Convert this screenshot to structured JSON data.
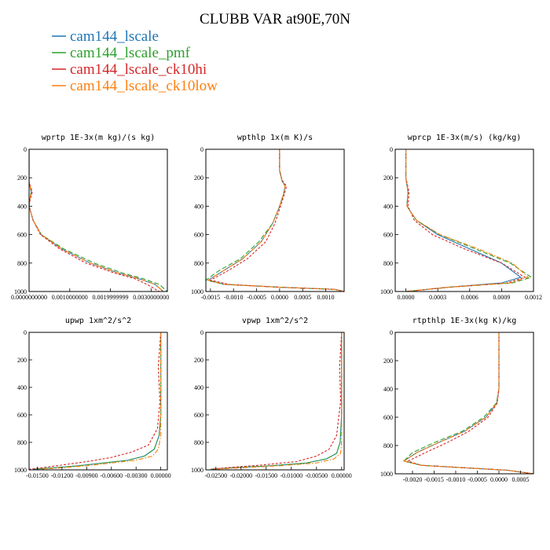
{
  "title": "CLUBB VAR at90E,70N",
  "legend": [
    {
      "label": "cam144_lscale",
      "color": "#1f77b4",
      "style": "solid"
    },
    {
      "label": "cam144_lscale_pmf",
      "color": "#2ca02c",
      "style": "longdash"
    },
    {
      "label": "cam144_lscale_ck10hi",
      "color": "#d62728",
      "style": "dash"
    },
    {
      "label": "cam144_lscale_ck10low",
      "color": "#ff7f0e",
      "style": "dashdot"
    }
  ],
  "chart_data": [
    {
      "type": "line",
      "title": "wprtp  1E-3x(m kg)/(s kg)",
      "xlim": [
        0,
        0.0034
      ],
      "ylim": [
        1000,
        0
      ],
      "xticks": [
        0,
        0.001,
        0.002,
        0.003
      ],
      "xtick_labels": [
        "0.0000000000",
        "0.0010000000",
        "0.0019999999",
        "0.0030000000"
      ],
      "yticks": [
        0,
        200,
        400,
        600,
        800,
        1000
      ],
      "ytick_labels": [
        "0",
        "200",
        "400",
        "600",
        "800",
        "1000"
      ],
      "series": [
        {
          "name": "cam144_lscale",
          "x": [
            0,
            0,
            0,
            5e-05,
            2e-05,
            0,
            0.0001,
            0.0003,
            0.0008,
            0.0015,
            0.0022,
            0.0027,
            0.0031,
            0.0033
          ],
          "y": [
            0,
            200,
            230,
            300,
            350,
            400,
            500,
            600,
            700,
            800,
            870,
            910,
            950,
            1000
          ]
        },
        {
          "name": "cam144_lscale_pmf",
          "x": [
            0,
            0,
            0,
            6e-05,
            2e-05,
            0,
            0.0001,
            0.0003,
            0.00085,
            0.0016,
            0.0023,
            0.0028,
            0.0032,
            0.0034
          ],
          "y": [
            0,
            200,
            230,
            300,
            350,
            400,
            500,
            600,
            700,
            800,
            870,
            910,
            950,
            1000
          ]
        },
        {
          "name": "cam144_lscale_ck10hi",
          "x": [
            0,
            0,
            0,
            8e-05,
            3e-05,
            0,
            0.0001,
            0.00028,
            0.00075,
            0.0014,
            0.0021,
            0.0026,
            0.0029,
            0.0032
          ],
          "y": [
            0,
            200,
            230,
            300,
            350,
            400,
            500,
            600,
            700,
            800,
            870,
            910,
            950,
            1000
          ]
        },
        {
          "name": "cam144_lscale_ck10low",
          "x": [
            0,
            0,
            0,
            5e-05,
            2e-05,
            0,
            0.0001,
            0.0003,
            0.0008,
            0.0015,
            0.0022,
            0.0027,
            0.0031,
            0.0033
          ],
          "y": [
            0,
            200,
            230,
            300,
            350,
            400,
            500,
            600,
            700,
            800,
            870,
            910,
            950,
            1000
          ]
        }
      ]
    },
    {
      "type": "line",
      "title": "wpthlp  1x(m K)/s",
      "xlim": [
        -0.0016,
        0.0014
      ],
      "ylim": [
        1000,
        0
      ],
      "xticks": [
        -0.0015,
        -0.001,
        -0.0005,
        0,
        0.0005,
        0.001
      ],
      "xtick_labels": [
        "-0.0015",
        "-0.0010",
        "-0.0005",
        "0.0000",
        "0.0005",
        "0.0010"
      ],
      "yticks": [
        0,
        200,
        400,
        600,
        800,
        1000
      ],
      "ytick_labels": [
        "0",
        "200",
        "400",
        "600",
        "800",
        "1000"
      ],
      "series": [
        {
          "name": "cam144_lscale",
          "x": [
            0,
            0,
            5e-05,
            0.00012,
            8e-05,
            0,
            -0.00015,
            -0.0004,
            -0.0008,
            -0.0012,
            -0.00155,
            -0.0012,
            0,
            0.0012,
            0.0014
          ],
          "y": [
            0,
            150,
            220,
            260,
            320,
            400,
            520,
            650,
            770,
            850,
            920,
            950,
            970,
            985,
            1000
          ]
        },
        {
          "name": "cam144_lscale_pmf",
          "x": [
            0,
            0,
            5e-05,
            0.00012,
            8e-05,
            0,
            -0.00015,
            -0.00045,
            -0.00085,
            -0.0013,
            -0.0016,
            -0.0012,
            0,
            0.0012,
            0.0014
          ],
          "y": [
            0,
            150,
            220,
            260,
            320,
            400,
            520,
            650,
            770,
            850,
            920,
            950,
            970,
            985,
            1000
          ]
        },
        {
          "name": "cam144_lscale_ck10hi",
          "x": [
            0,
            0,
            6e-05,
            0.00015,
            0.0001,
            2e-05,
            -0.0001,
            -0.0003,
            -0.0007,
            -0.0011,
            -0.0015,
            -0.0011,
            0,
            0.0012,
            0.0014
          ],
          "y": [
            0,
            150,
            220,
            260,
            320,
            400,
            520,
            650,
            770,
            850,
            920,
            950,
            970,
            985,
            1000
          ]
        },
        {
          "name": "cam144_lscale_ck10low",
          "x": [
            0,
            0,
            5e-05,
            0.00012,
            8e-05,
            0,
            -0.00015,
            -0.0004,
            -0.0008,
            -0.0012,
            -0.00155,
            -0.0012,
            0,
            0.0012,
            0.0014
          ],
          "y": [
            0,
            150,
            220,
            260,
            320,
            400,
            520,
            650,
            770,
            850,
            920,
            950,
            970,
            985,
            1000
          ]
        }
      ]
    },
    {
      "type": "line",
      "title": "wprcp  1E-3x(m/s) (kg/kg)",
      "xlim": [
        -0.0001,
        0.0012
      ],
      "ylim": [
        1000,
        0
      ],
      "xticks": [
        0,
        0.0003,
        0.0006,
        0.0009,
        0.0012
      ],
      "xtick_labels": [
        "0.0000",
        "0.0003",
        "0.0006",
        "0.0009",
        "0.0012"
      ],
      "yticks": [
        0,
        200,
        400,
        600,
        800,
        1000
      ],
      "ytick_labels": [
        "0",
        "200",
        "400",
        "600",
        "800",
        "1000"
      ],
      "series": [
        {
          "name": "cam144_lscale",
          "x": [
            0,
            0,
            2e-05,
            1e-05,
            0.0001,
            0.0003,
            0.0006,
            0.0009,
            0.00108,
            0.0009,
            0.0004,
            0
          ],
          "y": [
            0,
            200,
            300,
            400,
            500,
            600,
            700,
            800,
            900,
            940,
            970,
            1000
          ]
        },
        {
          "name": "cam144_lscale_pmf",
          "x": [
            0,
            0,
            2e-05,
            1e-05,
            0.0001,
            0.00032,
            0.00065,
            0.00098,
            0.00118,
            0.001,
            0.0004,
            0
          ],
          "y": [
            0,
            200,
            300,
            400,
            500,
            600,
            700,
            800,
            900,
            940,
            970,
            1000
          ]
        },
        {
          "name": "cam144_lscale_ck10hi",
          "x": [
            0,
            0,
            3e-05,
            2e-05,
            8e-05,
            0.00025,
            0.00055,
            0.0009,
            0.00112,
            0.00095,
            0.0004,
            0
          ],
          "y": [
            0,
            200,
            300,
            400,
            500,
            600,
            700,
            800,
            900,
            940,
            970,
            1000
          ]
        },
        {
          "name": "cam144_lscale_ck10low",
          "x": [
            0,
            0,
            2e-05,
            1e-05,
            0.0001,
            0.00032,
            0.00068,
            0.001,
            0.00115,
            0.00098,
            0.0004,
            0
          ],
          "y": [
            0,
            200,
            300,
            400,
            500,
            600,
            700,
            800,
            900,
            940,
            970,
            1000
          ]
        }
      ]
    },
    {
      "type": "line",
      "title": "upwp  1xm^2/s^2",
      "xlim": [
        -0.016,
        0.0008
      ],
      "ylim": [
        1000,
        0
      ],
      "xticks": [
        -0.015,
        -0.012,
        -0.009,
        -0.006,
        -0.003,
        0
      ],
      "xtick_labels": [
        "-0.01500",
        "-0.01200",
        "-0.00900",
        "-0.00600",
        "-0.00300",
        "0.00000"
      ],
      "yticks": [
        0,
        200,
        400,
        600,
        800,
        1000
      ],
      "ytick_labels": [
        "0",
        "200",
        "400",
        "600",
        "800",
        "1000"
      ],
      "series": [
        {
          "name": "cam144_lscale",
          "x": [
            0,
            0,
            0,
            -0.0002,
            -0.0008,
            -0.002,
            -0.004,
            -0.007,
            -0.01,
            -0.013,
            -0.0155
          ],
          "y": [
            0,
            300,
            600,
            750,
            850,
            900,
            930,
            950,
            970,
            985,
            995
          ]
        },
        {
          "name": "cam144_lscale_pmf",
          "x": [
            0,
            0,
            0,
            -0.0002,
            -0.0008,
            -0.002,
            -0.004,
            -0.007,
            -0.01,
            -0.013,
            -0.0155
          ],
          "y": [
            0,
            300,
            600,
            750,
            850,
            900,
            930,
            950,
            970,
            985,
            995
          ]
        },
        {
          "name": "cam144_lscale_ck10hi",
          "x": [
            0,
            -0.0003,
            -0.0001,
            -0.0004,
            -0.0015,
            -0.0035,
            -0.006,
            -0.009,
            -0.012,
            -0.0145,
            -0.016
          ],
          "y": [
            0,
            250,
            500,
            700,
            820,
            870,
            910,
            940,
            965,
            985,
            995
          ]
        },
        {
          "name": "cam144_lscale_ck10low",
          "x": [
            0,
            0,
            0,
            0,
            -0.0003,
            -0.001,
            -0.003,
            -0.006,
            -0.009,
            -0.012,
            -0.0145
          ],
          "y": [
            0,
            300,
            600,
            750,
            850,
            900,
            930,
            950,
            970,
            985,
            995
          ]
        }
      ]
    },
    {
      "type": "line",
      "title": "vpwp  1xm^2/s^2",
      "xlim": [
        -0.027,
        0.0005
      ],
      "ylim": [
        1000,
        0
      ],
      "xticks": [
        -0.025,
        -0.02,
        -0.015,
        -0.01,
        -0.005,
        0
      ],
      "xtick_labels": [
        "-0.02500",
        "-0.02000",
        "-0.01500",
        "-0.01000",
        "-0.00500",
        "0.00000"
      ],
      "yticks": [
        0,
        200,
        400,
        600,
        800,
        1000
      ],
      "ytick_labels": [
        "0",
        "200",
        "400",
        "600",
        "800",
        "1000"
      ],
      "series": [
        {
          "name": "cam144_lscale",
          "x": [
            0,
            0,
            0,
            -0.0003,
            -0.001,
            -0.003,
            -0.007,
            -0.014,
            -0.022,
            -0.026
          ],
          "y": [
            0,
            300,
            600,
            800,
            880,
            920,
            950,
            970,
            985,
            995
          ]
        },
        {
          "name": "cam144_lscale_pmf",
          "x": [
            0,
            0,
            0,
            -0.0003,
            -0.001,
            -0.003,
            -0.007,
            -0.014,
            -0.022,
            -0.026
          ],
          "y": [
            0,
            300,
            600,
            800,
            880,
            920,
            950,
            970,
            985,
            995
          ]
        },
        {
          "name": "cam144_lscale_ck10hi",
          "x": [
            0,
            -0.0004,
            -0.0002,
            -0.001,
            -0.0025,
            -0.005,
            -0.009,
            -0.016,
            -0.023,
            -0.026
          ],
          "y": [
            0,
            250,
            500,
            750,
            850,
            900,
            940,
            965,
            985,
            995
          ]
        },
        {
          "name": "cam144_lscale_ck10low",
          "x": [
            0,
            0,
            0,
            0,
            -0.0002,
            -0.0015,
            -0.005,
            -0.012,
            -0.02,
            -0.025
          ],
          "y": [
            0,
            300,
            600,
            800,
            880,
            920,
            950,
            970,
            985,
            995
          ]
        }
      ]
    },
    {
      "type": "line",
      "title": "rtpthlp  1E-3x(kg K)/kg",
      "xlim": [
        -0.0024,
        0.0008
      ],
      "ylim": [
        1000,
        0
      ],
      "xticks": [
        -0.002,
        -0.0015,
        -0.001,
        -0.0005,
        0,
        0.0005
      ],
      "xtick_labels": [
        "-0.0020",
        "-0.0015",
        "-0.0010",
        "-0.0005",
        "0.0000",
        "0.0005"
      ],
      "yticks": [
        0,
        200,
        400,
        600,
        800,
        1000
      ],
      "ytick_labels": [
        "0",
        "200",
        "400",
        "600",
        "800",
        "1000"
      ],
      "series": [
        {
          "name": "cam144_lscale",
          "x": [
            0,
            0,
            0,
            -5e-05,
            -0.0003,
            -0.0008,
            -0.0014,
            -0.0019,
            -0.0022,
            -0.0018,
            0.0002,
            0.0008
          ],
          "y": [
            0,
            200,
            400,
            500,
            600,
            700,
            780,
            850,
            910,
            940,
            975,
            1000
          ]
        },
        {
          "name": "cam144_lscale_pmf",
          "x": [
            0,
            0,
            0,
            -6e-05,
            -0.00035,
            -0.00085,
            -0.0015,
            -0.002,
            -0.0022,
            -0.0018,
            0.0002,
            0.0008
          ],
          "y": [
            0,
            200,
            400,
            500,
            600,
            700,
            780,
            850,
            910,
            940,
            975,
            1000
          ]
        },
        {
          "name": "cam144_lscale_ck10hi",
          "x": [
            0,
            0,
            0,
            -4e-05,
            -0.00025,
            -0.0007,
            -0.0012,
            -0.0017,
            -0.0021,
            -0.0018,
            0.0002,
            0.0008
          ],
          "y": [
            0,
            200,
            400,
            500,
            600,
            700,
            780,
            850,
            910,
            940,
            975,
            1000
          ]
        },
        {
          "name": "cam144_lscale_ck10low",
          "x": [
            0,
            0,
            0,
            -5e-05,
            -0.0003,
            -0.0008,
            -0.0014,
            -0.0019,
            -0.0022,
            -0.0018,
            0.0002,
            0.0008
          ],
          "y": [
            0,
            200,
            400,
            500,
            600,
            700,
            780,
            850,
            910,
            940,
            975,
            1000
          ]
        }
      ]
    }
  ]
}
